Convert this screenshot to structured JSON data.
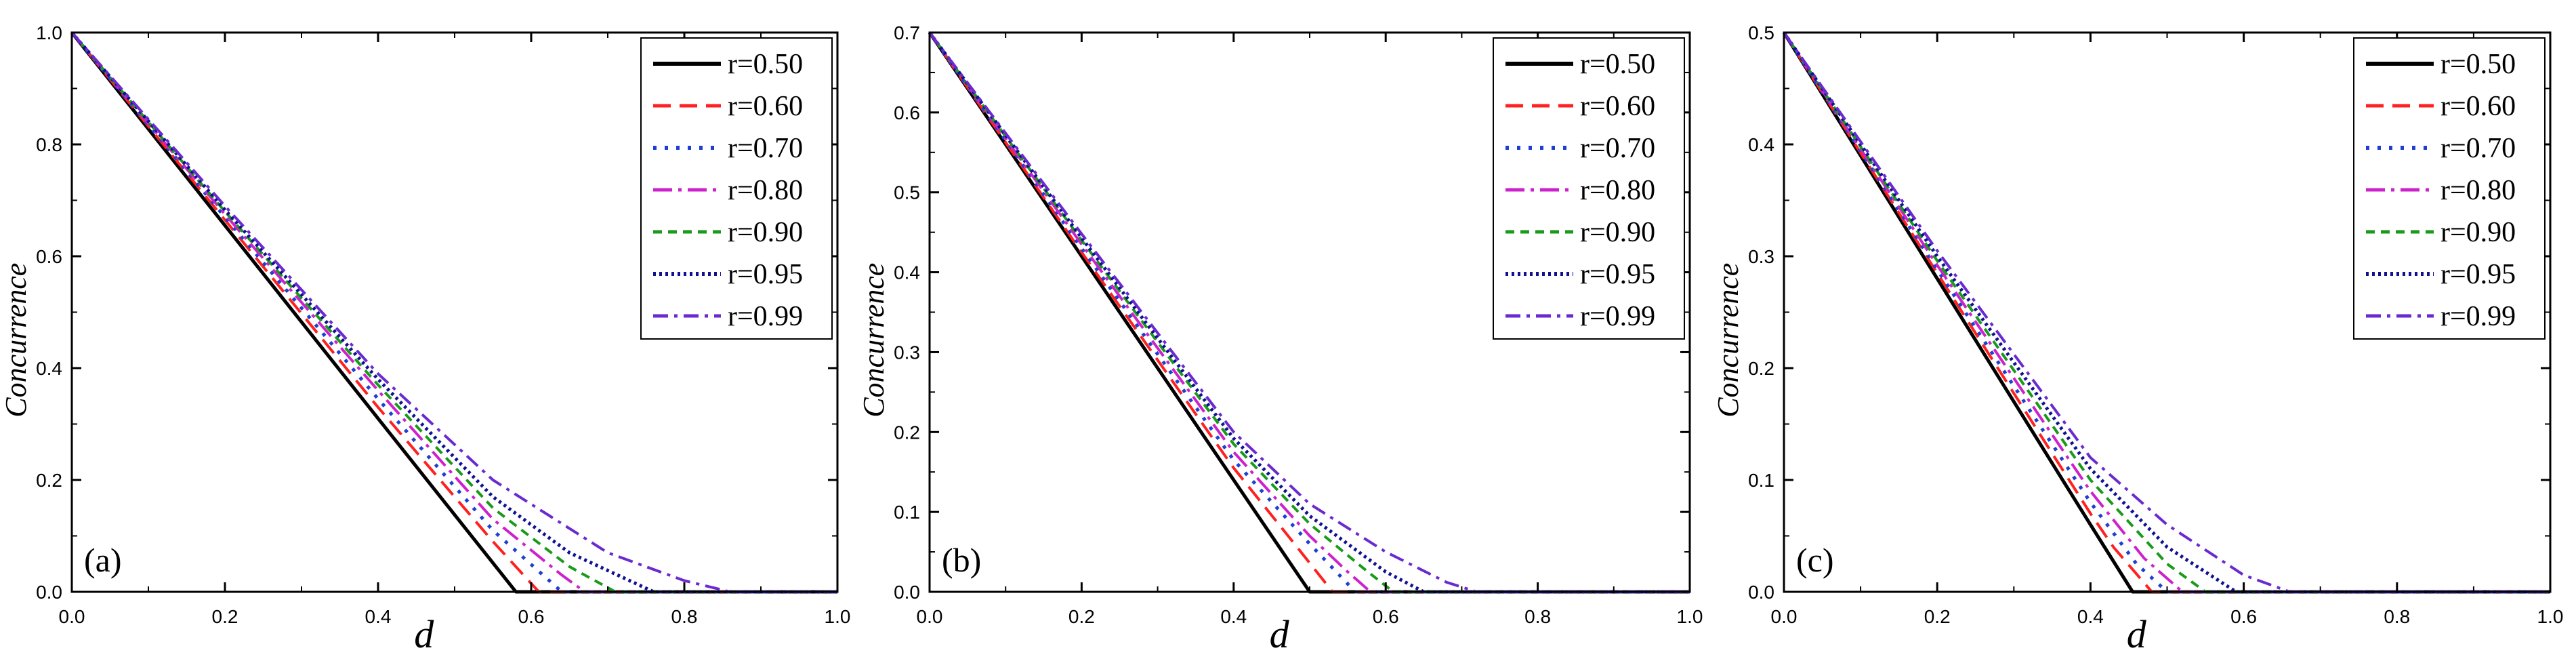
{
  "chart_data": [
    {
      "type": "line",
      "panel_label": "(a)",
      "xlabel": "d",
      "ylabel": "Concurrence",
      "xlim": [
        0,
        1
      ],
      "ylim": [
        0,
        1.0
      ],
      "xticks": [
        "0.0",
        "0.2",
        "0.4",
        "0.6",
        "0.8",
        "1.0"
      ],
      "yticks": [
        "0.0",
        "0.2",
        "0.4",
        "0.6",
        "0.8",
        "1.0"
      ],
      "grid": false,
      "legend_position": "top-right",
      "series": [
        {
          "name": "r=0.50",
          "points": [
            [
              0,
              1.0
            ],
            [
              0.2,
              0.655
            ],
            [
              0.4,
              0.31
            ],
            [
              0.58,
              0.0
            ],
            [
              1.0,
              0.0
            ]
          ]
        },
        {
          "name": "r=0.60",
          "points": [
            [
              0,
              1.0
            ],
            [
              0.2,
              0.665
            ],
            [
              0.4,
              0.33
            ],
            [
              0.55,
              0.09
            ],
            [
              0.61,
              0.0
            ],
            [
              1.0,
              0.0
            ]
          ]
        },
        {
          "name": "r=0.70",
          "points": [
            [
              0,
              1.0
            ],
            [
              0.2,
              0.67
            ],
            [
              0.4,
              0.345
            ],
            [
              0.55,
              0.11
            ],
            [
              0.64,
              0.0
            ],
            [
              1.0,
              0.0
            ]
          ]
        },
        {
          "name": "r=0.80",
          "points": [
            [
              0,
              1.0
            ],
            [
              0.2,
              0.675
            ],
            [
              0.4,
              0.36
            ],
            [
              0.55,
              0.13
            ],
            [
              0.64,
              0.03
            ],
            [
              0.67,
              0.0
            ],
            [
              1.0,
              0.0
            ]
          ]
        },
        {
          "name": "r=0.90",
          "points": [
            [
              0,
              1.0
            ],
            [
              0.2,
              0.68
            ],
            [
              0.4,
              0.37
            ],
            [
              0.55,
              0.15
            ],
            [
              0.65,
              0.045
            ],
            [
              0.71,
              0.0
            ],
            [
              1.0,
              0.0
            ]
          ]
        },
        {
          "name": "r=0.95",
          "points": [
            [
              0,
              1.0
            ],
            [
              0.2,
              0.683
            ],
            [
              0.4,
              0.38
            ],
            [
              0.55,
              0.17
            ],
            [
              0.65,
              0.07
            ],
            [
              0.76,
              0.0
            ],
            [
              1.0,
              0.0
            ]
          ]
        },
        {
          "name": "r=0.99",
          "points": [
            [
              0,
              1.0
            ],
            [
              0.2,
              0.69
            ],
            [
              0.4,
              0.39
            ],
            [
              0.55,
              0.2
            ],
            [
              0.7,
              0.07
            ],
            [
              0.8,
              0.02
            ],
            [
              0.86,
              0.0
            ],
            [
              1.0,
              0.0
            ]
          ]
        }
      ]
    },
    {
      "type": "line",
      "panel_label": "(b)",
      "xlabel": "d",
      "ylabel": "Concurrence",
      "xlim": [
        0,
        1
      ],
      "ylim": [
        0,
        0.7
      ],
      "xticks": [
        "0.0",
        "0.2",
        "0.4",
        "0.6",
        "0.8",
        "1.0"
      ],
      "yticks": [
        "0.0",
        "0.1",
        "0.2",
        "0.3",
        "0.4",
        "0.5",
        "0.6",
        "0.7"
      ],
      "grid": false,
      "legend_position": "top-right",
      "series": [
        {
          "name": "r=0.50",
          "points": [
            [
              0,
              0.7
            ],
            [
              0.2,
              0.42
            ],
            [
              0.4,
              0.14
            ],
            [
              0.5,
              0.0
            ],
            [
              1.0,
              0.0
            ]
          ]
        },
        {
          "name": "r=0.60",
          "points": [
            [
              0,
              0.7
            ],
            [
              0.2,
              0.425
            ],
            [
              0.4,
              0.155
            ],
            [
              0.48,
              0.06
            ],
            [
              0.53,
              0.0
            ],
            [
              1.0,
              0.0
            ]
          ]
        },
        {
          "name": "r=0.70",
          "points": [
            [
              0,
              0.7
            ],
            [
              0.2,
              0.43
            ],
            [
              0.4,
              0.165
            ],
            [
              0.5,
              0.06
            ],
            [
              0.56,
              0.0
            ],
            [
              1.0,
              0.0
            ]
          ]
        },
        {
          "name": "r=0.80",
          "points": [
            [
              0,
              0.7
            ],
            [
              0.2,
              0.435
            ],
            [
              0.4,
              0.175
            ],
            [
              0.5,
              0.07
            ],
            [
              0.55,
              0.025
            ],
            [
              0.58,
              0.0
            ],
            [
              1.0,
              0.0
            ]
          ]
        },
        {
          "name": "r=0.90",
          "points": [
            [
              0,
              0.7
            ],
            [
              0.2,
              0.44
            ],
            [
              0.4,
              0.185
            ],
            [
              0.5,
              0.085
            ],
            [
              0.57,
              0.03
            ],
            [
              0.61,
              0.0
            ],
            [
              1.0,
              0.0
            ]
          ]
        },
        {
          "name": "r=0.95",
          "points": [
            [
              0,
              0.7
            ],
            [
              0.2,
              0.443
            ],
            [
              0.4,
              0.192
            ],
            [
              0.5,
              0.095
            ],
            [
              0.6,
              0.025
            ],
            [
              0.65,
              0.0
            ],
            [
              1.0,
              0.0
            ]
          ]
        },
        {
          "name": "r=0.99",
          "points": [
            [
              0,
              0.7
            ],
            [
              0.2,
              0.448
            ],
            [
              0.4,
              0.2
            ],
            [
              0.5,
              0.11
            ],
            [
              0.6,
              0.05
            ],
            [
              0.68,
              0.012
            ],
            [
              0.72,
              0.0
            ],
            [
              1.0,
              0.0
            ]
          ]
        }
      ]
    },
    {
      "type": "line",
      "panel_label": "(c)",
      "xlabel": "d",
      "ylabel": "Concurrence",
      "xlim": [
        0,
        1
      ],
      "ylim": [
        0,
        0.5
      ],
      "xticks": [
        "0.0",
        "0.2",
        "0.4",
        "0.6",
        "0.8",
        "1.0"
      ],
      "yticks": [
        "0.0",
        "0.1",
        "0.2",
        "0.3",
        "0.4",
        "0.5"
      ],
      "grid": false,
      "legend_position": "top-right",
      "series": [
        {
          "name": "r=0.50",
          "points": [
            [
              0,
              0.5
            ],
            [
              0.2,
              0.28
            ],
            [
              0.4,
              0.06
            ],
            [
              0.455,
              0.0
            ],
            [
              1.0,
              0.0
            ]
          ]
        },
        {
          "name": "r=0.60",
          "points": [
            [
              0,
              0.5
            ],
            [
              0.2,
              0.285
            ],
            [
              0.4,
              0.07
            ],
            [
              0.43,
              0.04
            ],
            [
              0.48,
              0.0
            ],
            [
              1.0,
              0.0
            ]
          ]
        },
        {
          "name": "r=0.70",
          "points": [
            [
              0,
              0.5
            ],
            [
              0.2,
              0.288
            ],
            [
              0.4,
              0.08
            ],
            [
              0.46,
              0.025
            ],
            [
              0.5,
              0.0
            ],
            [
              1.0,
              0.0
            ]
          ]
        },
        {
          "name": "r=0.80",
          "points": [
            [
              0,
              0.5
            ],
            [
              0.2,
              0.292
            ],
            [
              0.4,
              0.09
            ],
            [
              0.47,
              0.03
            ],
            [
              0.52,
              0.0
            ],
            [
              1.0,
              0.0
            ]
          ]
        },
        {
          "name": "r=0.90",
          "points": [
            [
              0,
              0.5
            ],
            [
              0.2,
              0.296
            ],
            [
              0.4,
              0.1
            ],
            [
              0.5,
              0.025
            ],
            [
              0.55,
              0.0
            ],
            [
              1.0,
              0.0
            ]
          ]
        },
        {
          "name": "r=0.95",
          "points": [
            [
              0,
              0.5
            ],
            [
              0.2,
              0.3
            ],
            [
              0.4,
              0.11
            ],
            [
              0.5,
              0.04
            ],
            [
              0.59,
              0.0
            ],
            [
              1.0,
              0.0
            ]
          ]
        },
        {
          "name": "r=0.99",
          "points": [
            [
              0,
              0.5
            ],
            [
              0.2,
              0.305
            ],
            [
              0.4,
              0.12
            ],
            [
              0.5,
              0.06
            ],
            [
              0.6,
              0.015
            ],
            [
              0.66,
              0.0
            ],
            [
              1.0,
              0.0
            ]
          ]
        }
      ]
    }
  ],
  "series_styles": [
    {
      "color": "#000000",
      "dash": "none",
      "width": 5
    },
    {
      "color": "#ff2020",
      "dash": "26,13",
      "width": 4
    },
    {
      "color": "#1f3fd0",
      "dash": "5,12",
      "width": 5
    },
    {
      "color": "#cc22cc",
      "dash": "28,9,5,9",
      "width": 4
    },
    {
      "color": "#1a9a1a",
      "dash": "13,9",
      "width": 4
    },
    {
      "color": "#101090",
      "dash": "4,5",
      "width": 5
    },
    {
      "color": "#6a2ad0",
      "dash": "22,9,5,9",
      "width": 4
    }
  ]
}
